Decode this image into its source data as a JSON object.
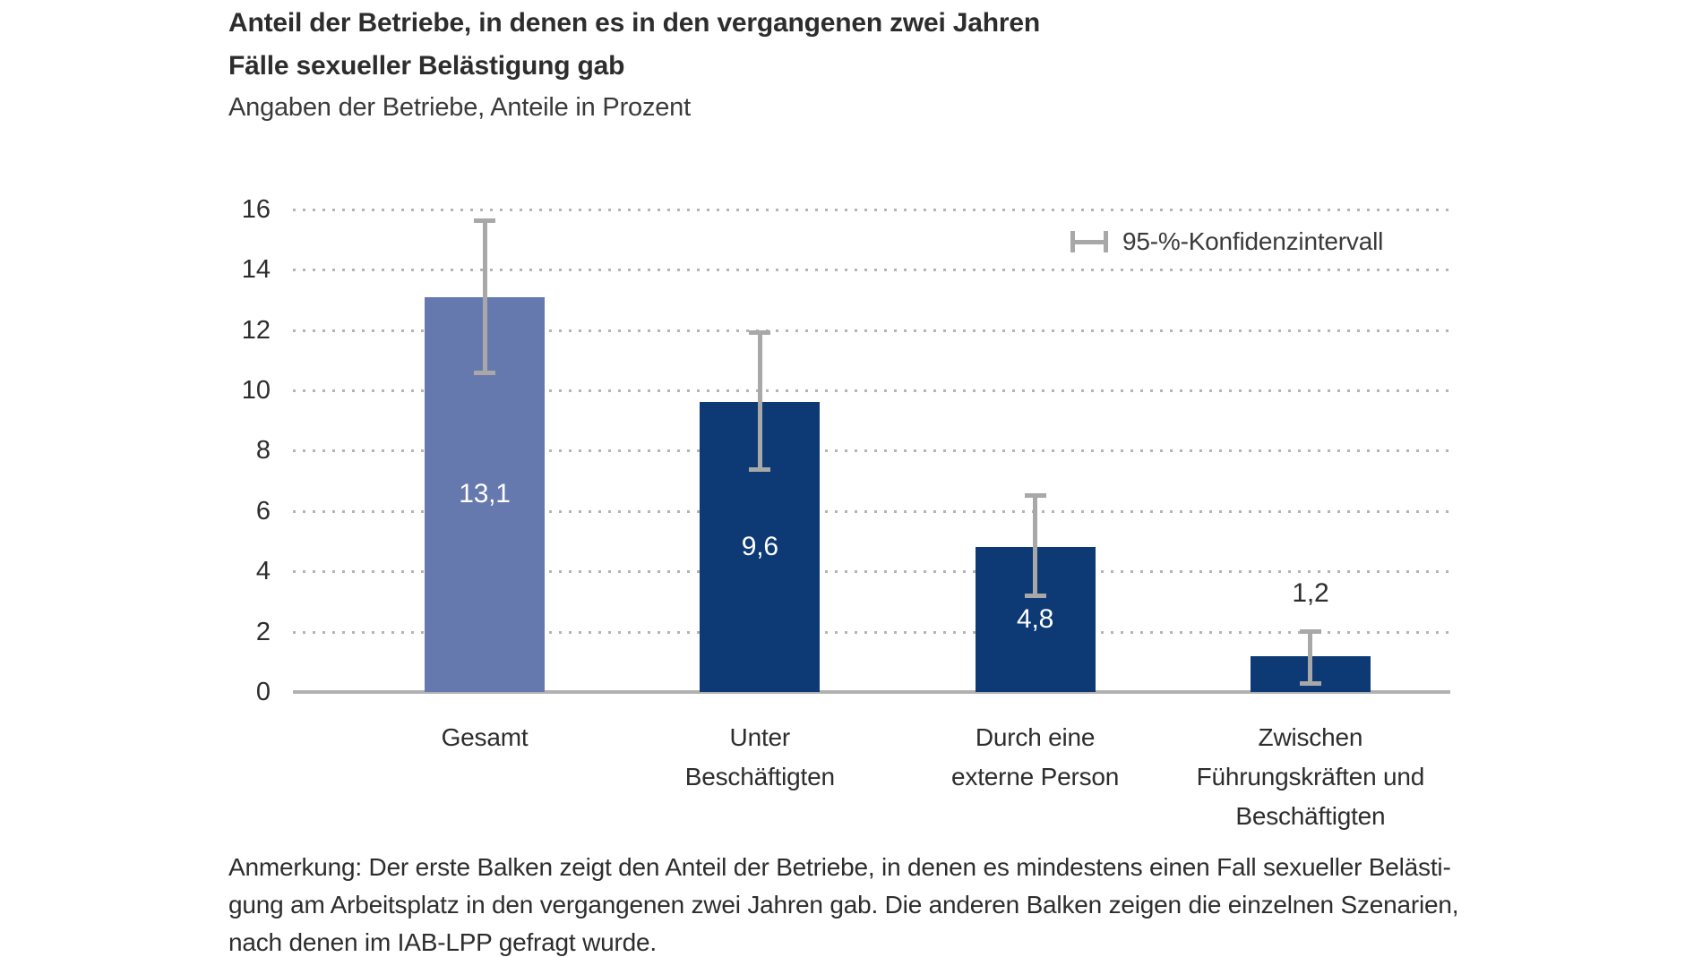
{
  "header": {
    "title": "Anteil der Betriebe, in denen es in den vergangenen zwei Jahren\nFälle sexueller Belästigung gab",
    "subtitle": "Angaben der Betriebe, Anteile in Prozent"
  },
  "legend": {
    "label": "95-%-Konfidenzintervall",
    "icon": "error-bar-interval-icon"
  },
  "note": "Anmerkung: Der erste Balken zeigt den Anteil der Betriebe, in denen es mindestens einen Fall sexueller Belästi-\ngung am Arbeitsplatz in den vergangenen zwei Jahren gab. Die anderen Balken zeigen die einzelnen Szenarien,\nnach denen im IAB-LPP gefragt wurde.",
  "chart_data": {
    "type": "bar",
    "title": "Anteil der Betriebe, in denen es in den vergangenen zwei Jahren Fälle sexueller Belästigung gab",
    "subtitle": "Angaben der Betriebe, Anteile in Prozent",
    "categories": [
      "Gesamt",
      "Unter Beschäftigten",
      "Durch eine externe Person",
      "Zwischen Führungskräften und Beschäftigten"
    ],
    "category_label_lines": [
      [
        "Gesamt"
      ],
      [
        "Unter",
        "Beschäftigten"
      ],
      [
        "Durch eine",
        "externe Person"
      ],
      [
        "Zwischen",
        "Führungskräften und",
        "Beschäftigten"
      ]
    ],
    "values": [
      13.1,
      9.6,
      4.8,
      1.2
    ],
    "value_labels": [
      "13,1",
      "9,6",
      "4,8",
      "1,2"
    ],
    "ci_low": [
      10.6,
      7.4,
      3.2,
      0.3
    ],
    "ci_high": [
      15.6,
      11.9,
      6.5,
      2.0
    ],
    "value_label_placement": [
      "inside",
      "inside",
      "inside",
      "above"
    ],
    "bar_colors": [
      "#6679af",
      "#0d3a75",
      "#0d3a75",
      "#0d3a75"
    ],
    "xlabel": "",
    "ylabel": "",
    "ylim": [
      0,
      16
    ],
    "yticks": [
      0,
      2,
      4,
      6,
      8,
      10,
      12,
      14,
      16
    ],
    "grid": "horizontal-dotted",
    "legend_label": "95-%-Konfidenzintervall",
    "legend_position": "top-right",
    "colors": {
      "error_bar": "#a8a8a8",
      "axis_line": "#b1b1b1",
      "gridline": "#b4b4b4",
      "value_label_inside": "#ffffff",
      "value_label_above": "#2d2d2d",
      "text": "#2d2d2d"
    }
  }
}
